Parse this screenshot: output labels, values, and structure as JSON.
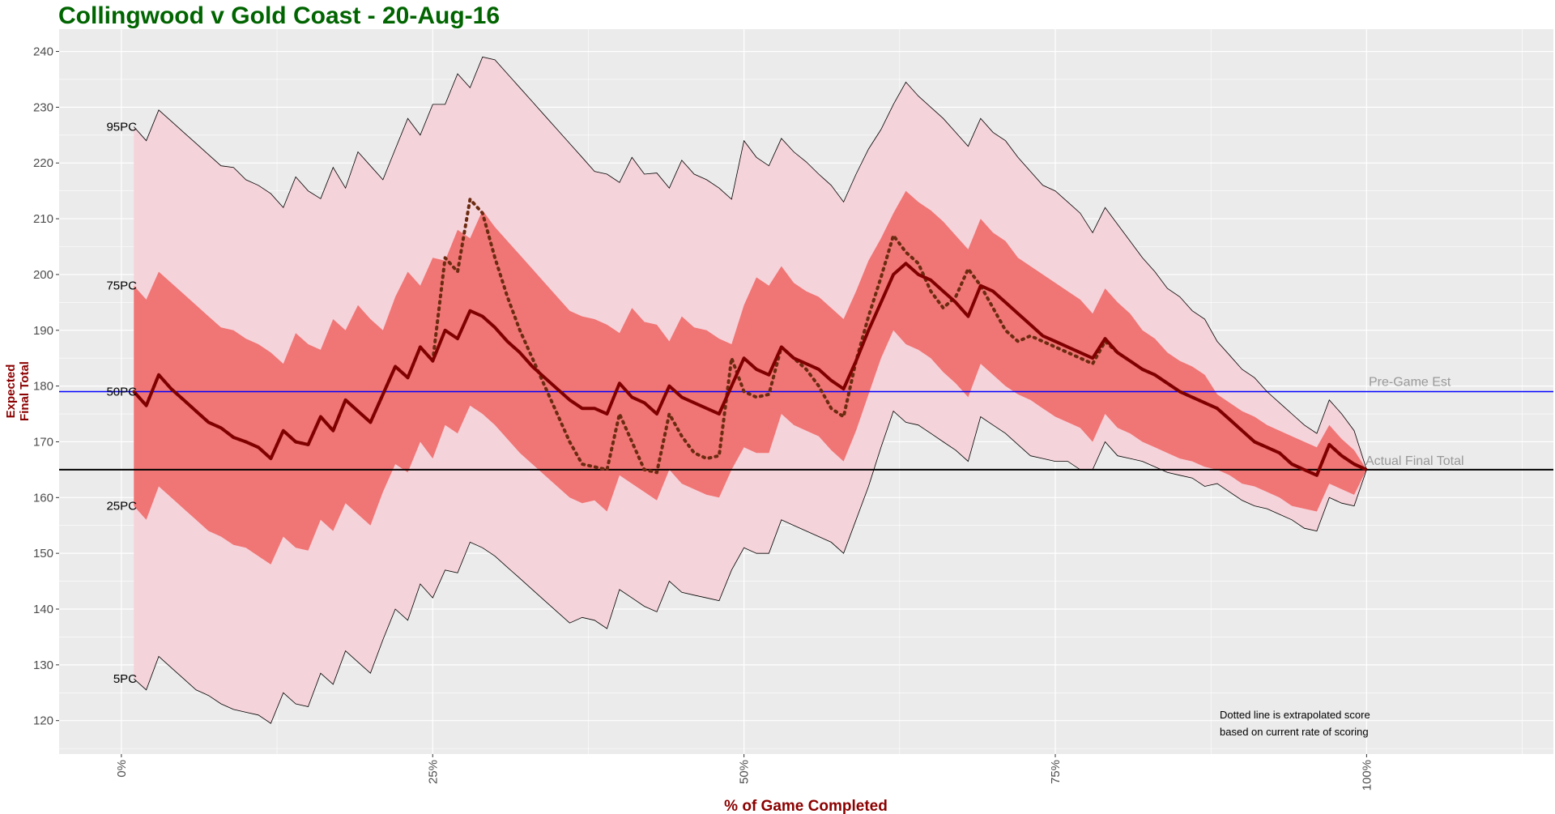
{
  "chart_data": {
    "type": "area",
    "title": "Collingwood v Gold Coast - 20-Aug-16",
    "xlabel": "% of Game Completed",
    "ylabel": [
      "Expected",
      "Final Total"
    ],
    "xlim": [
      -5,
      115
    ],
    "ylim": [
      114,
      244
    ],
    "x_ticks": [
      {
        "value": 0,
        "label": "0%"
      },
      {
        "value": 25,
        "label": "25%"
      },
      {
        "value": 50,
        "label": "50%"
      },
      {
        "value": 75,
        "label": "75%"
      },
      {
        "value": 100,
        "label": "100%"
      }
    ],
    "y_ticks": [
      120,
      130,
      140,
      150,
      160,
      170,
      180,
      190,
      200,
      210,
      220,
      230,
      240
    ],
    "grid": true,
    "colors": {
      "panel": "#ebebeb",
      "grid": "#ffffff",
      "band_outer": "#f5d3da",
      "band_inner": "#f07575",
      "median": "#800000",
      "extrapolated": "#6b2b10",
      "pregame_line": "#0000ff",
      "final_line": "#000000"
    },
    "x": [
      1,
      2,
      3,
      4,
      5,
      6,
      7,
      8,
      9,
      10,
      11,
      12,
      13,
      14,
      15,
      16,
      17,
      18,
      19,
      20,
      21,
      22,
      23,
      24,
      25,
      26,
      27,
      28,
      29,
      30,
      31,
      32,
      33,
      34,
      35,
      36,
      37,
      38,
      39,
      40,
      41,
      42,
      43,
      44,
      45,
      46,
      47,
      48,
      49,
      50,
      51,
      52,
      53,
      54,
      55,
      56,
      57,
      58,
      59,
      60,
      61,
      62,
      63,
      64,
      65,
      66,
      67,
      68,
      69,
      70,
      71,
      72,
      73,
      74,
      75,
      76,
      77,
      78,
      79,
      80,
      81,
      82,
      83,
      84,
      85,
      86,
      87,
      88,
      89,
      90,
      91,
      92,
      93,
      94,
      95,
      96,
      97,
      98,
      99,
      100
    ],
    "series": [
      {
        "role": "p95",
        "values": [
          226.5,
          224,
          229.5,
          227.5,
          225.5,
          223.5,
          221.5,
          219.5,
          219.2,
          217,
          216,
          214.5,
          212,
          217.5,
          215,
          213.6,
          219.2,
          215.5,
          222,
          219.5,
          217,
          222.5,
          228,
          225,
          230.5,
          230.5,
          236,
          233.5,
          239,
          238.5,
          236,
          233.5,
          231,
          228.5,
          226,
          223.5,
          221,
          218.5,
          218,
          216.5,
          221,
          218,
          218.2,
          215.5,
          220.5,
          218,
          217,
          215.5,
          213.5,
          224,
          221,
          219.5,
          224.4,
          222,
          220.2,
          218,
          216,
          213,
          218,
          222.5,
          226,
          230.5,
          234.5,
          232,
          230,
          228,
          225.5,
          223,
          228,
          225.5,
          224,
          221,
          218.5,
          216,
          215,
          213,
          211,
          207.5,
          212,
          209,
          206,
          203,
          200.5,
          197.5,
          196,
          193.5,
          192,
          188,
          185.5,
          183,
          181.5,
          179,
          177,
          175,
          173,
          171.5,
          177.5,
          175,
          172,
          165
        ]
      },
      {
        "role": "p75",
        "values": [
          198,
          195.5,
          200.5,
          198.5,
          196.5,
          194.5,
          192.5,
          190.5,
          190,
          188.5,
          187.5,
          186,
          184,
          189.5,
          187.5,
          186.5,
          192,
          190,
          194.5,
          192,
          190,
          196,
          200.5,
          198,
          203,
          202.5,
          208,
          206.5,
          211.5,
          208.5,
          206,
          203.5,
          201,
          198.5,
          196,
          193.5,
          192.5,
          192,
          191,
          189.5,
          194,
          191.5,
          191,
          188,
          192.5,
          190.5,
          190,
          188.5,
          187.5,
          194.5,
          199.5,
          198,
          201.5,
          198.5,
          197,
          196,
          194,
          192,
          197,
          202.5,
          206.5,
          211,
          215,
          213,
          211.5,
          209.5,
          207,
          204.5,
          210,
          207.5,
          206,
          203,
          201.5,
          200,
          198.5,
          197,
          195.5,
          193,
          197.5,
          195,
          193,
          190,
          188.5,
          186,
          184.5,
          183.5,
          182,
          178.5,
          177,
          175.5,
          174.5,
          173,
          172,
          171,
          170,
          169,
          173,
          170.5,
          168.5,
          165
        ]
      },
      {
        "role": "p50",
        "values": [
          179,
          176.5,
          182,
          179.5,
          177.5,
          175.5,
          173.5,
          172.5,
          170.8,
          170,
          169,
          167,
          172,
          170,
          169.5,
          174.5,
          172,
          177.5,
          175.5,
          173.5,
          178.5,
          183.5,
          181.5,
          187,
          184.5,
          190,
          188.5,
          193.5,
          192.5,
          190.5,
          188,
          186,
          183.5,
          181.5,
          179.5,
          177.5,
          176,
          176,
          175,
          180.5,
          178,
          177,
          175,
          180,
          178,
          177,
          176,
          175,
          180,
          185,
          183,
          182,
          187,
          185,
          184,
          183,
          181,
          179.5,
          184.5,
          190,
          195,
          200,
          202,
          200,
          199,
          197,
          195,
          192.5,
          198,
          197,
          195,
          193,
          191,
          189,
          188,
          187,
          186,
          185,
          188.5,
          186,
          184.5,
          183,
          182,
          180.5,
          179,
          178,
          177,
          176,
          174,
          172,
          170,
          169,
          168,
          166,
          165,
          164,
          169.5,
          167.5,
          166,
          165
        ]
      },
      {
        "role": "p25",
        "values": [
          158.5,
          156,
          162,
          160,
          158,
          156,
          154,
          153,
          151.5,
          151,
          149.5,
          148,
          153,
          151,
          150.5,
          156,
          154,
          159,
          157,
          155,
          161,
          166,
          164.5,
          170,
          167,
          173,
          171.5,
          176.5,
          175,
          173,
          170.5,
          168,
          166,
          164,
          162,
          160,
          159,
          159.5,
          157.5,
          164,
          162.5,
          161,
          159.5,
          165,
          162.5,
          161.5,
          160.5,
          160,
          165,
          169,
          168,
          168,
          175,
          173,
          172,
          171,
          168.5,
          166.5,
          172,
          178.5,
          185,
          190,
          187.5,
          186.5,
          185,
          182.5,
          180.5,
          178,
          184,
          182,
          180,
          178.5,
          177.5,
          176,
          174.5,
          173.5,
          172.5,
          170,
          175,
          172.5,
          171.5,
          170,
          169,
          168,
          167,
          166.5,
          165.5,
          165,
          164,
          162.5,
          162,
          161,
          160,
          158.5,
          158,
          157.5,
          162.5,
          161.5,
          160.5,
          165
        ]
      },
      {
        "role": "p5",
        "values": [
          127.5,
          125.5,
          131.5,
          129.5,
          127.5,
          125.5,
          124.5,
          123,
          122,
          121.5,
          121,
          119.5,
          125,
          123,
          122.5,
          128.5,
          126.5,
          132.5,
          130.5,
          128.5,
          134.5,
          140,
          138,
          144.5,
          142,
          147,
          146.5,
          152,
          151,
          149.5,
          147.5,
          145.5,
          143.5,
          141.5,
          139.5,
          137.5,
          138.5,
          138,
          136.5,
          143.5,
          142,
          140.5,
          139.5,
          145,
          143,
          142.5,
          142,
          141.5,
          147,
          151,
          150,
          150,
          156,
          155,
          154,
          153,
          152,
          150,
          156,
          162,
          169,
          175.5,
          173.5,
          173,
          171.5,
          170,
          168.5,
          166.5,
          174.5,
          173,
          171.5,
          169.5,
          167.5,
          167,
          166.5,
          166.5,
          165,
          165,
          170,
          167.5,
          167,
          166.5,
          165.5,
          164.5,
          164,
          163.5,
          162,
          162.5,
          161,
          159.5,
          158.5,
          158,
          157,
          156,
          154.5,
          154,
          160,
          159,
          158.5,
          165
        ]
      },
      {
        "role": "extrapolated",
        "name": "Dotted line is extrapolated score",
        "values": [
          179,
          176.5,
          182,
          179.5,
          177.5,
          175.5,
          173.5,
          172.5,
          170.8,
          170,
          169,
          167,
          172,
          170,
          169.5,
          174.5,
          172,
          177.5,
          175.5,
          173.5,
          178.5,
          183.5,
          181.5,
          187,
          184.5,
          203,
          200.5,
          213.5,
          211,
          203,
          196,
          190,
          185,
          180,
          175,
          170,
          166,
          165.5,
          165,
          175,
          170,
          165,
          164.5,
          175,
          171,
          168,
          167,
          167.5,
          185,
          179,
          178,
          178.5,
          187,
          185,
          183,
          180,
          176,
          174.5,
          184.5,
          192.5,
          199.5,
          207,
          204,
          202,
          197,
          194,
          196,
          201,
          198,
          194,
          190,
          188,
          189,
          188,
          187,
          186,
          185,
          184,
          188,
          186,
          184.5,
          183,
          182,
          180.5,
          179,
          178,
          177,
          176,
          174,
          172,
          170,
          169,
          168,
          166,
          165,
          164,
          169.5,
          167.5,
          166,
          165
        ]
      }
    ],
    "percentile_labels": [
      {
        "text": "95PC",
        "value": 226.5
      },
      {
        "text": "75PC",
        "value": 198
      },
      {
        "text": "50PC",
        "value": 179
      },
      {
        "text": "25PC",
        "value": 158.5
      },
      {
        "text": "5PC",
        "value": 127.5
      }
    ],
    "reference_lines": [
      {
        "name": "pregame",
        "label": "Pre-Game Est",
        "value": 179
      },
      {
        "name": "final",
        "label": "Actual Final Total",
        "value": 165
      }
    ],
    "annotation": [
      "Dotted line is extrapolated score",
      "based on current rate of scoring"
    ]
  }
}
